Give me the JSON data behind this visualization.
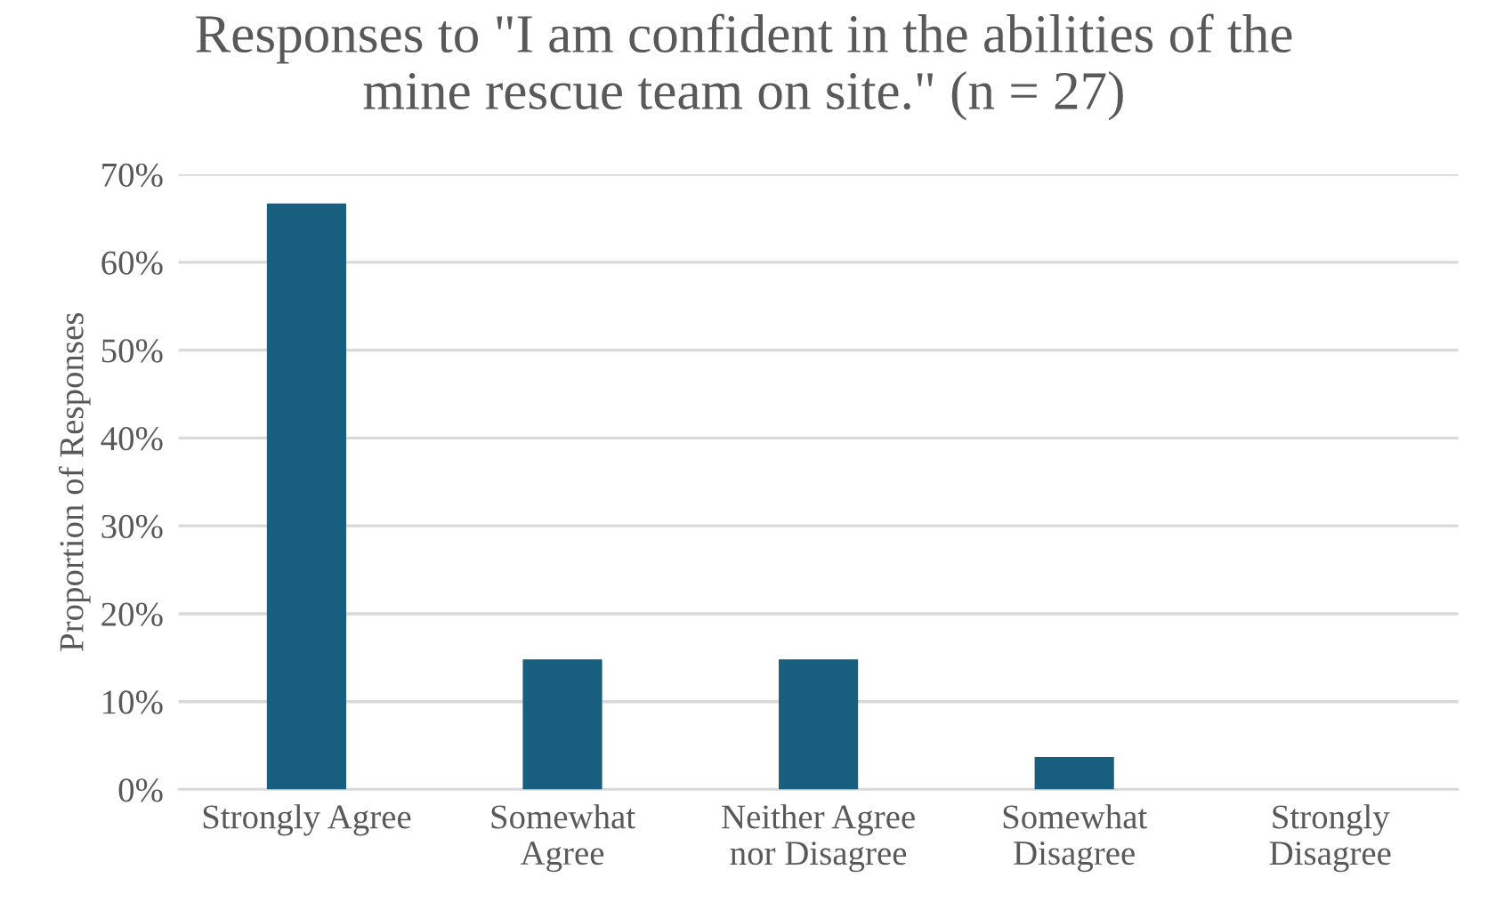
{
  "chart_data": {
    "type": "bar",
    "title": "Responses to \"I am confident in the abilities of the\nmine rescue team on site.\" (n = 27)",
    "ylabel": "Proportion of Responses",
    "categories": [
      "Strongly Agree",
      "Somewhat\nAgree",
      "Neither Agree\nnor Disagree",
      "Somewhat\nDisagree",
      "Strongly\nDisagree"
    ],
    "values": [
      66.7,
      14.8,
      14.8,
      3.7,
      0
    ],
    "color": "#175e7f",
    "ylim": [
      0,
      70
    ],
    "yticks": [
      {
        "value": 0,
        "label": "0%"
      },
      {
        "value": 10,
        "label": "10%"
      },
      {
        "value": 20,
        "label": "20%"
      },
      {
        "value": 30,
        "label": "30%"
      },
      {
        "value": 40,
        "label": "40%"
      },
      {
        "value": 50,
        "label": "50%"
      },
      {
        "value": 60,
        "label": "60%"
      },
      {
        "value": 70,
        "label": "70%"
      }
    ],
    "grid": "y"
  }
}
